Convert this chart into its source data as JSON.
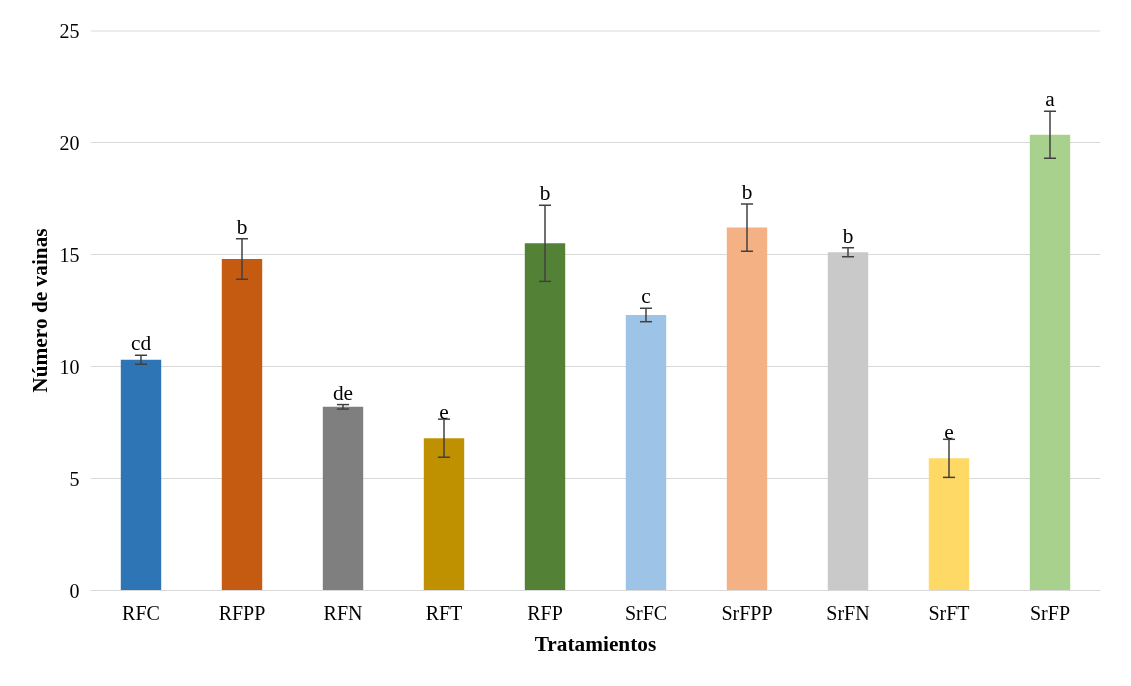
{
  "chart_data": {
    "type": "bar",
    "xlabel": "Tratamientos",
    "ylabel": "Número de vainas",
    "categories": [
      "RFC",
      "RFPP",
      "RFN",
      "RFT",
      "RFP",
      "SrFC",
      "SrFPP",
      "SrFN",
      "SrFT",
      "SrFP"
    ],
    "values": [
      10.3,
      14.8,
      8.2,
      6.8,
      15.5,
      12.3,
      16.2,
      15.1,
      5.9,
      20.35
    ],
    "errors": [
      0.2,
      0.9,
      0.1,
      0.85,
      1.7,
      0.3,
      1.05,
      0.2,
      0.85,
      1.05
    ],
    "colors": [
      "#2e75b6",
      "#c55a11",
      "#7f7f7f",
      "#bf9000",
      "#538135",
      "#9dc3e6",
      "#f4b183",
      "#c9c9c9",
      "#ffd966",
      "#a9d18e"
    ],
    "ylim": [
      0,
      25
    ],
    "yticks": [
      0,
      5,
      10,
      15,
      20,
      25
    ],
    "grid": "y",
    "annotations": [
      {
        "text": "cd",
        "x": "RFC",
        "y": 10.5
      },
      {
        "text": "b",
        "x": "RFPP",
        "y": 15.7
      },
      {
        "text": "de",
        "x": "RFN",
        "y": 8.3
      },
      {
        "text": "e",
        "x": "RFT",
        "y": 7.65
      },
      {
        "text": "b",
        "x": "RFP",
        "y": 17.2
      },
      {
        "text": "c",
        "x": "SrFC",
        "y": 12.6
      },
      {
        "text": "b",
        "x": "SrFPP",
        "y": 17.25
      },
      {
        "text": "b",
        "x": "SrFN",
        "y": 15.3
      },
      {
        "text": "e",
        "x": "SrFT",
        "y": 6.75
      },
      {
        "text": "a",
        "x": "SrFP",
        "y": 21.4
      }
    ]
  }
}
